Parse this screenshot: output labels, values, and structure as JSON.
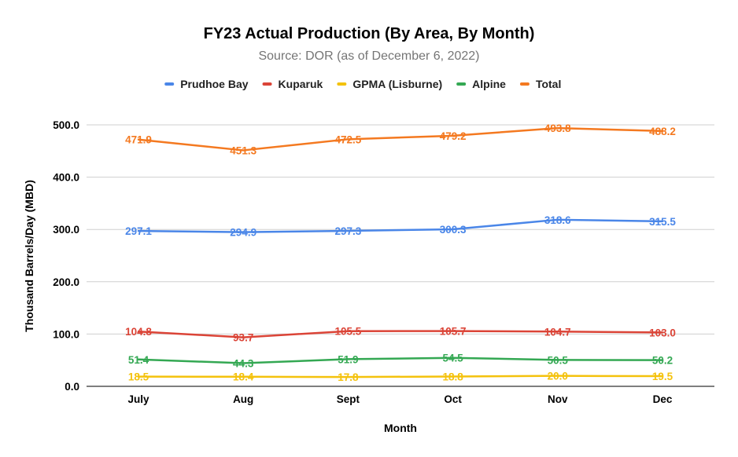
{
  "chart_data": {
    "type": "line",
    "title": "FY23 Actual Production (By Area, By Month)",
    "subtitle": "Source: DOR (as of December 6, 2022)",
    "xlabel": "Month",
    "ylabel": "Thousand Barrels/Day (MBD)",
    "categories": [
      "July",
      "Aug",
      "Sept",
      "Oct",
      "Nov",
      "Dec"
    ],
    "ylim": [
      0,
      500
    ],
    "yticks": [
      "0.0",
      "100.0",
      "200.0",
      "300.0",
      "400.0",
      "500.0"
    ],
    "ytick_values": [
      0,
      100,
      200,
      300,
      400,
      500
    ],
    "grid": true,
    "legend_position": "top",
    "series": [
      {
        "name": "Prudhoe Bay",
        "color": "#4a86e8",
        "values": [
          297.1,
          294.9,
          297.3,
          300.3,
          318.6,
          315.5
        ],
        "labels": [
          "297.1",
          "294.9",
          "297.3",
          "300.3",
          "318.6",
          "315.5"
        ]
      },
      {
        "name": "Kuparuk",
        "color": "#db4437",
        "values": [
          104.8,
          93.7,
          105.5,
          105.7,
          104.7,
          103.0
        ],
        "labels": [
          "104.8",
          "93.7",
          "105.5",
          "105.7",
          "104.7",
          "103.0"
        ]
      },
      {
        "name": "GPMA (Lisburne)",
        "color": "#f4c20d",
        "values": [
          18.5,
          18.4,
          17.8,
          18.8,
          20.0,
          19.5
        ],
        "labels": [
          "18.5",
          "18.4",
          "17.8",
          "18.8",
          "20.0",
          "19.5"
        ]
      },
      {
        "name": "Alpine",
        "color": "#34a853",
        "values": [
          51.4,
          44.3,
          51.9,
          54.5,
          50.5,
          50.2
        ],
        "labels": [
          "51.4",
          "44.3",
          "51.9",
          "54.5",
          "50.5",
          "50.2"
        ]
      },
      {
        "name": "Total",
        "color": "#f47920",
        "values": [
          471.9,
          451.3,
          472.5,
          479.2,
          493.8,
          488.2
        ],
        "labels": [
          "471.9",
          "451.3",
          "472.5",
          "479.2",
          "493.8",
          "488.2"
        ]
      }
    ]
  }
}
